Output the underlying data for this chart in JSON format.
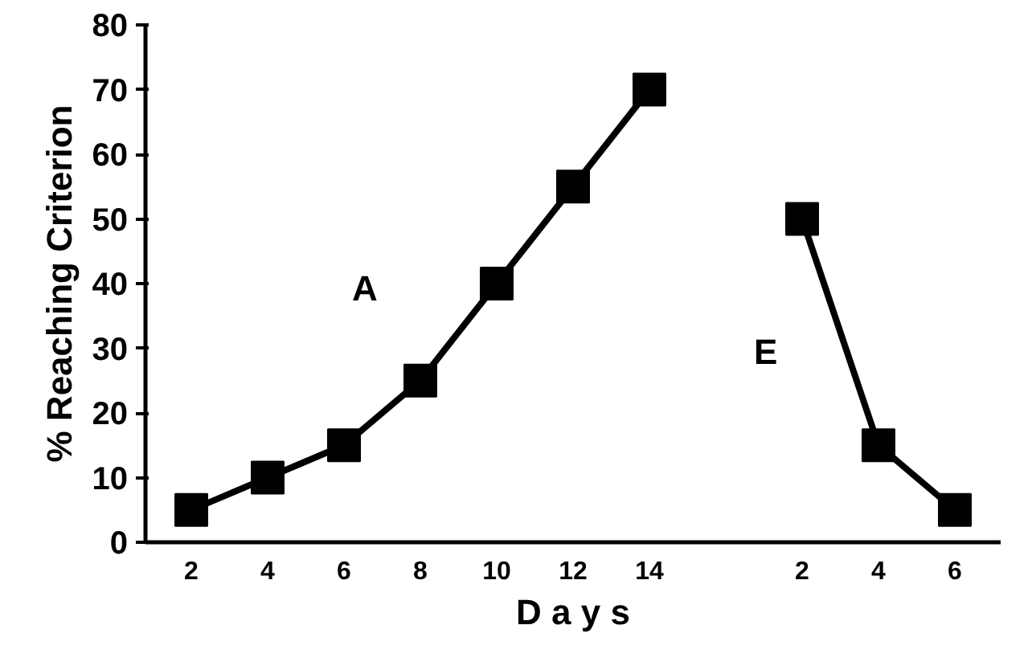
{
  "chart_data": {
    "type": "line",
    "xlabel": "D a y s",
    "ylabel": "% Reaching Criterion",
    "categories": [
      "2",
      "4",
      "6",
      "8",
      "10",
      "12",
      "14",
      null,
      "2",
      "4",
      "6"
    ],
    "series": [
      {
        "name": "A",
        "color": "#000000",
        "values": [
          5,
          10,
          15,
          25,
          40,
          55,
          70,
          null,
          null,
          null,
          null
        ]
      },
      {
        "name": "E",
        "color": "#000000",
        "values": [
          null,
          null,
          null,
          null,
          null,
          null,
          null,
          null,
          50,
          15,
          5
        ]
      }
    ],
    "ylim": [
      0,
      80
    ],
    "yticks": [
      0,
      10,
      20,
      30,
      40,
      50,
      60,
      70,
      80
    ],
    "grid": false,
    "marker": "square",
    "line_style": "solid"
  }
}
